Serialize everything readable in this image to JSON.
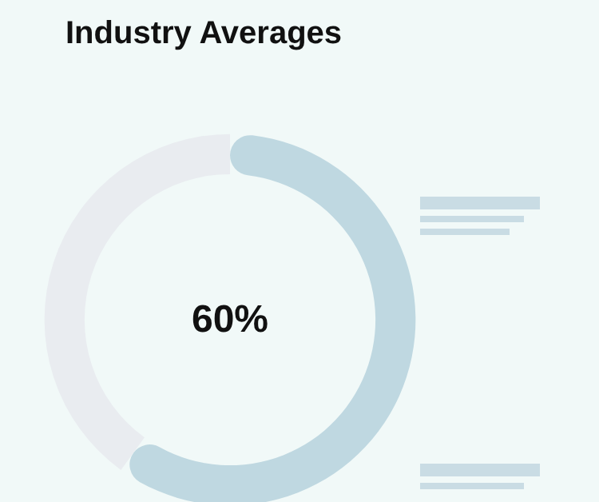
{
  "chart_data": {
    "type": "donut",
    "title": "Industry Averages",
    "categories": [
      null,
      null
    ],
    "values": [
      60,
      40
    ],
    "colors": [
      "#bfd8e1",
      "#e9ecf0"
    ],
    "value_labels": [
      "60%",
      null
    ]
  }
}
